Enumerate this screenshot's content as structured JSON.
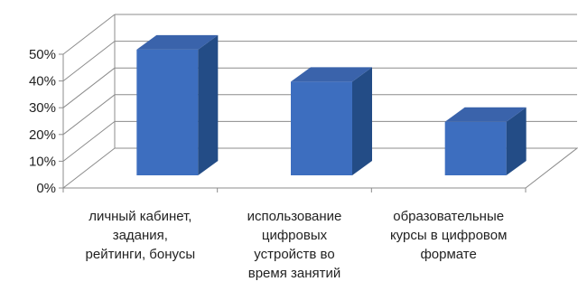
{
  "chart_data": {
    "type": "bar",
    "categories": [
      [
        "личный кабинет,",
        "задания,",
        "рейтинги, бонусы"
      ],
      [
        "использование",
        "цифровых",
        "устройств во",
        "время занятий"
      ],
      [
        "образовательные",
        "курсы в цифровом",
        "формате"
      ]
    ],
    "values": [
      47,
      35,
      20
    ],
    "ylim": [
      0,
      50
    ],
    "yticks": [
      "0%",
      "10%",
      "20%",
      "30%",
      "40%",
      "50%"
    ],
    "grid": true,
    "legend": "none",
    "colors": {
      "bar_front": "#3D6EBF",
      "bar_top": "#3A63AB",
      "bar_side": "#234C86",
      "grid": "#8C8C8C"
    }
  }
}
